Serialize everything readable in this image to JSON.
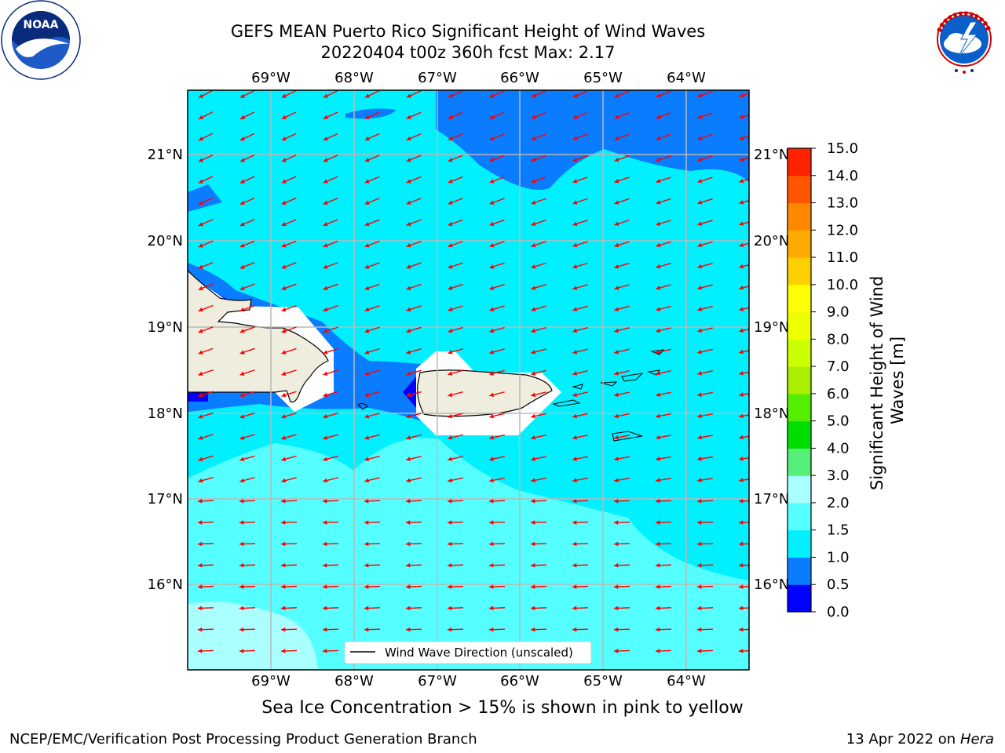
{
  "title_line1": "GEFS MEAN Puerto Rico Significant Height of Wind Waves",
  "title_line2": "20220404 t00z 360h fcst   Max: 2.17",
  "logos": {
    "left": {
      "text": "NOAA",
      "icon": "noaa-logo",
      "ring_text": "NATIONAL OCEANIC AND ATMOSPHERIC ADMINISTRATION · U.S. DEPARTMENT OF COMMERCE"
    },
    "right": {
      "icon": "nws-logo",
      "ring_text": "NATIONAL WEATHER SERVICE"
    }
  },
  "map": {
    "lon_labels": [
      "69°W",
      "68°W",
      "67°W",
      "66°W",
      "65°W",
      "64°W"
    ],
    "lat_labels": [
      "21°N",
      "20°N",
      "19°N",
      "18°N",
      "17°N",
      "16°N"
    ],
    "legend_label": "Wind Wave Direction (unscaled)",
    "arrow_color": "#ff0000",
    "land_color": "#efedde"
  },
  "colorbar": {
    "label": "Significant Height of Wind Waves [m]",
    "ticks": [
      "0.0",
      "0.5",
      "1.0",
      "1.5",
      "2.0",
      "3.0",
      "4.0",
      "5.0",
      "6.0",
      "7.0",
      "8.0",
      "9.0",
      "10.0",
      "11.0",
      "12.0",
      "13.0",
      "14.0",
      "15.0"
    ],
    "colors": [
      "#0000ff",
      "#0a7cff",
      "#00f0ff",
      "#55ffff",
      "#aaffff",
      "#55ee77",
      "#00dd00",
      "#55ee00",
      "#aaee00",
      "#ccff00",
      "#eeff00",
      "#ffff00",
      "#ffd000",
      "#ffaa00",
      "#ff8800",
      "#ff5500",
      "#ff2200"
    ]
  },
  "note": "Sea Ice Concentration > 15% is shown in pink to yellow",
  "footer": {
    "left": "NCEP/EMC/Verification Post Processing Product Generation Branch",
    "right_prefix": "13 Apr 2022 on ",
    "right_host": "Hera"
  }
}
